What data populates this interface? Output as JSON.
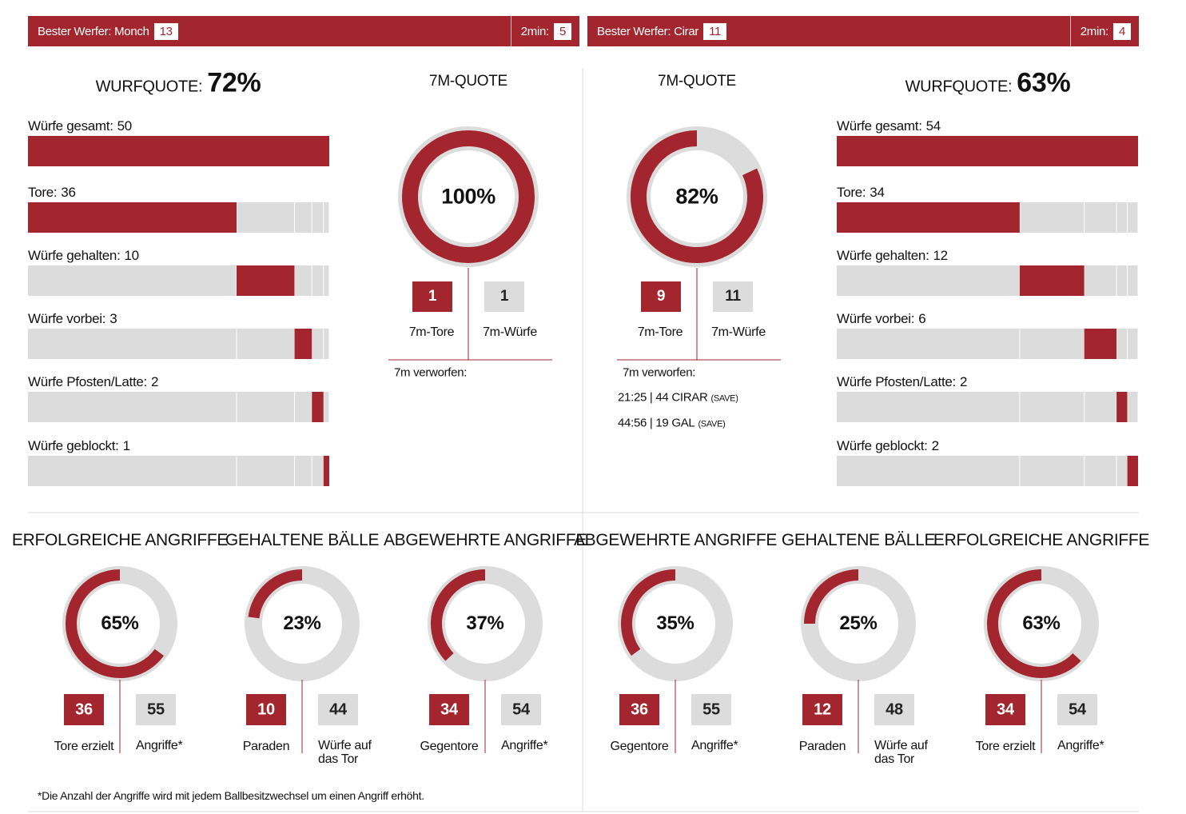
{
  "teams": [
    {
      "header": {
        "best_thrower": "Bester Werfer: Monch",
        "best_thrower_goals": 13,
        "two_min_label": "2min:",
        "two_min": 5
      },
      "shot_rate": {
        "label": "WURFQUOTE:",
        "value": "72%"
      },
      "shots": [
        {
          "label": "Würfe gesamt:",
          "value": 50
        },
        {
          "label": "Tore:",
          "value": 36
        },
        {
          "label": "Würfe gehalten:",
          "value": 10
        },
        {
          "label": "Würfe vorbei:",
          "value": 3
        },
        {
          "label": "Würfe Pfosten/Latte:",
          "value": 2
        },
        {
          "label": "Würfe geblockt:",
          "value": 1
        }
      ],
      "seven_m": {
        "title": "7M-QUOTE",
        "percent": 100,
        "percent_label": "100%",
        "goals": 1,
        "goals_label": "7m-Tore",
        "attempts": 1,
        "attempts_label": "7m-Würfe",
        "missed_title": "7m verworfen:",
        "missed": []
      },
      "donuts": [
        {
          "title": "ERFOLGREICHE ANGRIFFE",
          "percent": 65,
          "percent_label": "65%",
          "a": 36,
          "a_label": "Tore erzielt",
          "b": 55,
          "b_label": "Angriffe*"
        },
        {
          "title": "GEHALTENE BÄLLE",
          "percent": 23,
          "percent_label": "23%",
          "a": 10,
          "a_label": "Paraden",
          "b": 44,
          "b_label": "Würfe auf das Tor"
        },
        {
          "title": "ABGEWEHRTE ANGRIFFE",
          "percent": 37,
          "percent_label": "37%",
          "a": 34,
          "a_label": "Gegentore",
          "b": 54,
          "b_label": "Angriffe*"
        }
      ]
    },
    {
      "header": {
        "best_thrower": "Bester Werfer: Cirar",
        "best_thrower_goals": 11,
        "two_min_label": "2min:",
        "two_min": 4
      },
      "shot_rate": {
        "label": "WURFQUOTE:",
        "value": "63%"
      },
      "shots": [
        {
          "label": "Würfe gesamt:",
          "value": 54
        },
        {
          "label": "Tore:",
          "value": 34
        },
        {
          "label": "Würfe gehalten:",
          "value": 12
        },
        {
          "label": "Würfe vorbei:",
          "value": 6
        },
        {
          "label": "Würfe Pfosten/Latte:",
          "value": 2
        },
        {
          "label": "Würfe geblockt:",
          "value": 2
        }
      ],
      "seven_m": {
        "title": "7M-QUOTE",
        "percent": 82,
        "percent_label": "82%",
        "goals": 9,
        "goals_label": "7m-Tore",
        "attempts": 11,
        "attempts_label": "7m-Würfe",
        "missed_title": "7m verworfen:",
        "missed": [
          {
            "text": "21:25 | 44 CIRAR",
            "note": "(SAVE)"
          },
          {
            "text": "44:56 | 19 GAL",
            "note": "(SAVE)"
          }
        ]
      },
      "donuts": [
        {
          "title": "ABGEWEHRTE ANGRIFFE",
          "percent": 35,
          "percent_label": "35%",
          "a": 36,
          "a_label": "Gegentore",
          "b": 55,
          "b_label": "Angriffe*"
        },
        {
          "title": "GEHALTENE BÄLLE",
          "percent": 25,
          "percent_label": "25%",
          "a": 12,
          "a_label": "Paraden",
          "b": 48,
          "b_label": "Würfe auf das Tor"
        },
        {
          "title": "ERFOLGREICHE ANGRIFFE",
          "percent": 63,
          "percent_label": "63%",
          "a": 34,
          "a_label": "Tore erzielt",
          "b": 54,
          "b_label": "Angriffe*"
        }
      ]
    }
  ],
  "footnote": "*Die Anzahl der Angriffe wird mit jedem Ballbesitzwechsel um einen Angriff erhöht."
}
